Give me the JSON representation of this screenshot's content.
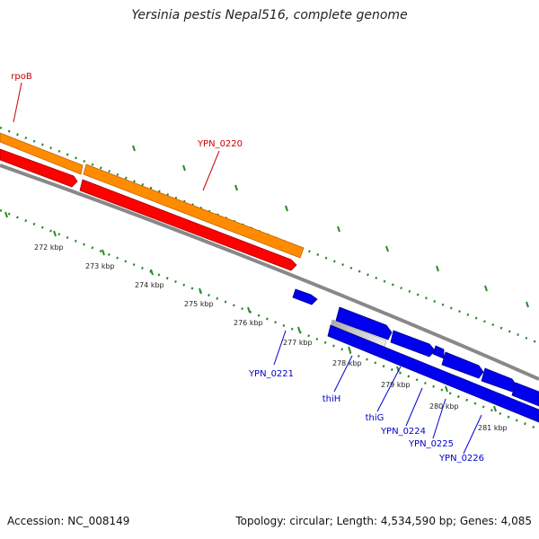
{
  "title": "Yersinia pestis Nepal516, complete genome",
  "footer": {
    "accession": "Accession: NC_008149",
    "summary": "Topology: circular; Length: 4,534,590 bp; Genes: 4,085"
  },
  "colors": {
    "rna_or_reverse_top": "#ff8c00",
    "reverse_strand": "#ff0000",
    "forward_strand": "#0000ee",
    "backbone": "#888888",
    "ticks": "#2a8a2a",
    "label_reverse": "#cc0000",
    "label_forward": "#0000cc"
  },
  "tick_labels": [
    "272 kbp",
    "273 kbp",
    "274 kbp",
    "275 kbp",
    "276 kbp",
    "277 kbp",
    "278 kbp",
    "279 kbp",
    "280 kbp",
    "281 kbp"
  ],
  "gene_labels": {
    "rpoB": "rpoB",
    "ypn0220": "YPN_0220",
    "ypn0221": "YPN_0221",
    "thiH": "thiH",
    "thiG": "thiG",
    "ypn0224": "YPN_0224",
    "ypn0225": "YPN_0225",
    "ypn0226": "YPN_0226"
  }
}
